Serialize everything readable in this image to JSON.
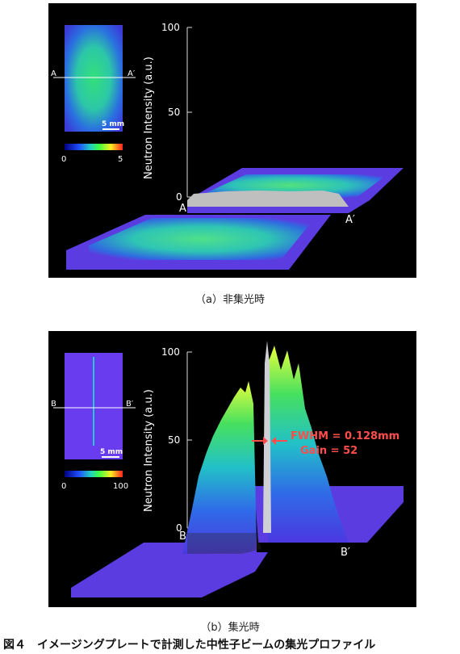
{
  "panel_a": {
    "inset": {
      "line_left": "A",
      "line_right": "A′",
      "scale": "5 mm",
      "colorbar_min": "0",
      "colorbar_max": "5"
    },
    "axis": {
      "ylabel": "Neutron Intensity (a.u.)",
      "ticks": [
        "0",
        "50",
        "100"
      ]
    },
    "profile_left": "A",
    "profile_right": "A′",
    "caption": "（a）非集光時"
  },
  "panel_b": {
    "inset": {
      "line_left": "B",
      "line_right": "B′",
      "scale": "5 mm",
      "colorbar_min": "0",
      "colorbar_max": "100"
    },
    "axis": {
      "ylabel": "Neutron Intensity (a.u.)",
      "ticks": [
        "0",
        "50",
        "100"
      ]
    },
    "profile_left": "B",
    "profile_right": "B′",
    "annotation_fwhm": "FWHM = 0.128mm",
    "annotation_gain": "Gain = 52",
    "caption": "（b）集光時"
  },
  "figure_title": "図４　イメージングプレートで計測した中性子ビームの集光プロファイル",
  "colors": {
    "background": "#000000",
    "plate": "#5a3ce0",
    "intensity_low": "#2a4fd6",
    "intensity_mid": "#33d08a",
    "intensity_high": "#e8ff3a",
    "annotation": "#ff4d4d"
  }
}
